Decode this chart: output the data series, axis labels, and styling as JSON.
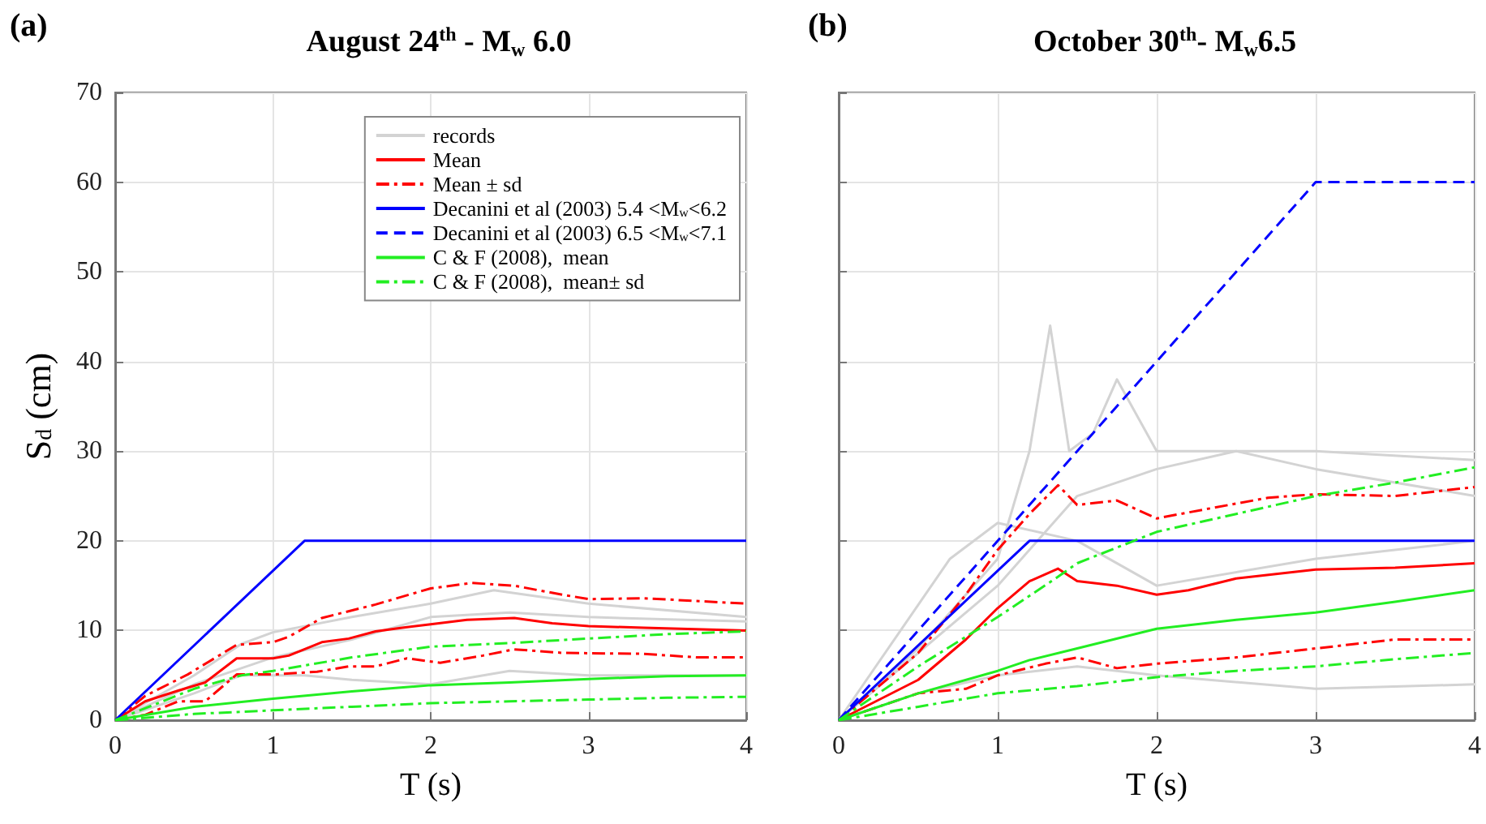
{
  "chart_data": [
    {
      "type": "line",
      "title": "August 24$^{th}$ - M$_{w}$ 6.0",
      "xlabel": "T (s)",
      "ylabel": "S$_{d}$ (cm)",
      "annotations": [
        "(a)"
      ],
      "xlim": [
        0,
        4
      ],
      "xticks": [
        0,
        1,
        2,
        3,
        4
      ],
      "ylim": [
        0,
        70
      ],
      "yticks": [
        0,
        10,
        20,
        30,
        40,
        50,
        60,
        70
      ],
      "grid": true,
      "legend": "top right",
      "marker": "none",
      "series": [
        {
          "name": "records",
          "color": "#d3d3d3",
          "line_style": "solid",
          "x": [
            0,
            0.5,
            0.8,
            1,
            1.5,
            2,
            2.4,
            3,
            4
          ],
          "values": [
            0,
            5,
            8.5,
            9.8,
            11.5,
            13,
            14.5,
            13,
            11.5
          ]
        },
        {
          "color": "#d3d3d3",
          "line_style": "solid",
          "x": [
            0,
            0.5,
            1,
            1.5,
            2,
            2.5,
            3,
            4
          ],
          "values": [
            0,
            4,
            7,
            9,
            11.5,
            12,
            11.5,
            11
          ]
        },
        {
          "color": "#d3d3d3",
          "line_style": "solid",
          "x": [
            0,
            0.5,
            0.8,
            1.2,
            1.5,
            2,
            2.5,
            3,
            4
          ],
          "values": [
            0,
            3,
            5,
            5,
            4.5,
            4,
            5.5,
            5,
            5
          ]
        },
        {
          "name": "Mean",
          "color": "#ff0000",
          "line_style": "solid",
          "x": [
            0,
            0.19,
            0.4,
            0.57,
            0.77,
            1,
            1.1,
            1.31,
            1.48,
            1.65,
            1.82,
            2,
            2.23,
            2.53,
            2.77,
            3,
            3.35,
            4
          ],
          "values": [
            0,
            2.1,
            3.3,
            4.2,
            6.9,
            6.9,
            7.2,
            8.7,
            9.1,
            9.9,
            10.3,
            10.7,
            11.2,
            11.4,
            10.8,
            10.5,
            10.3,
            10
          ]
        },
        {
          "name": "Mean ± sd",
          "color": "#ff0000",
          "line_style": "dashdot",
          "x": [
            0,
            0.19,
            0.46,
            0.77,
            1,
            1.1,
            1.31,
            1.65,
            2,
            2.26,
            2.53,
            2.8,
            3,
            3.35,
            4
          ],
          "values": [
            0,
            2.7,
            5.1,
            8.4,
            8.7,
            9.3,
            11.4,
            12.9,
            14.7,
            15.3,
            15,
            14.1,
            13.5,
            13.6,
            13
          ]
        },
        {
          "color": "#ff0000",
          "line_style": "dashdot",
          "x": [
            0,
            0.19,
            0.4,
            0.57,
            0.77,
            1,
            1.28,
            1.48,
            1.65,
            1.85,
            2.06,
            2.33,
            2.53,
            2.84,
            3.35,
            3.69,
            4
          ],
          "values": [
            0,
            0.6,
            2.1,
            2.1,
            5.1,
            5.1,
            5.4,
            6,
            6,
            6.9,
            6.4,
            7.2,
            7.9,
            7.5,
            7.4,
            7,
            7
          ]
        },
        {
          "name": "Decanini et al (2003) 5.4 <M$_{w}$<6.2",
          "color": "#0000ff",
          "line_style": "solid",
          "x": [
            0,
            1.2,
            4
          ],
          "values": [
            0,
            20,
            20
          ]
        },
        {
          "name": "Decanini et al (2003) 6.5 <M$_{w}$<7.1",
          "color": "#0000ff",
          "line_style": "dashed"
        },
        {
          "name": "C & F (2008),  mean",
          "color": "#22ee22",
          "line_style": "solid",
          "x": [
            0,
            0.5,
            1,
            1.5,
            2,
            2.5,
            3,
            3.5,
            4
          ],
          "values": [
            0,
            1.5,
            2.4,
            3.2,
            3.9,
            4.2,
            4.6,
            4.9,
            5
          ]
        },
        {
          "name": "C & F (2008),  mean± sd",
          "color": "#22ee22",
          "line_style": "dashdot",
          "x": [
            0,
            0.5,
            0.8,
            1,
            1.5,
            2,
            2.5,
            3,
            3.5,
            4
          ],
          "values": [
            0,
            3.5,
            5,
            5.5,
            7,
            8.2,
            8.6,
            9.1,
            9.6,
            9.9
          ]
        },
        {
          "color": "#22ee22",
          "line_style": "dashdot",
          "x": [
            0,
            0.5,
            1,
            1.5,
            2,
            2.5,
            3,
            3.5,
            4
          ],
          "values": [
            0,
            0.7,
            1.1,
            1.5,
            1.9,
            2.1,
            2.3,
            2.5,
            2.6
          ]
        }
      ]
    },
    {
      "type": "line",
      "title": "October 30$^{th}$- M$_{w}$6.5",
      "xlabel": "T (s)",
      "annotations": [
        "(b)"
      ],
      "xlim": [
        0,
        4
      ],
      "xticks": [
        0,
        1,
        2,
        3,
        4
      ],
      "ylim": [
        0,
        70
      ],
      "yticks": [
        0,
        10,
        20,
        30,
        40,
        50,
        60,
        70
      ],
      "grid": true,
      "tick_labels": "x",
      "marker": "none",
      "series": [
        {
          "color": "#d3d3d3",
          "line_style": "solid",
          "x": [
            0,
            0.5,
            1,
            1.2,
            1.33,
            1.45,
            1.6,
            1.75,
            2,
            2.5,
            3,
            4
          ],
          "values": [
            0,
            8,
            18,
            30,
            44,
            30,
            32,
            38,
            30,
            30,
            28,
            25
          ]
        },
        {
          "color": "#d3d3d3",
          "line_style": "solid",
          "x": [
            0,
            0.7,
            1,
            1.5,
            2,
            3,
            4
          ],
          "values": [
            0,
            18,
            22,
            20,
            15,
            18,
            20
          ]
        },
        {
          "color": "#d3d3d3",
          "line_style": "solid",
          "x": [
            0,
            0.5,
            1,
            1.5,
            2,
            3,
            4
          ],
          "values": [
            0,
            3,
            5,
            6,
            5,
            3.5,
            4
          ]
        },
        {
          "color": "#d3d3d3",
          "line_style": "solid",
          "x": [
            0,
            1,
            1.5,
            2,
            2.5,
            3,
            4
          ],
          "values": [
            0,
            15,
            25,
            28,
            30,
            30,
            29
          ]
        },
        {
          "color": "#ff0000",
          "line_style": "solid",
          "x": [
            0,
            0.5,
            0.8,
            1,
            1.2,
            1.38,
            1.5,
            1.75,
            2,
            2.2,
            2.5,
            3,
            3.5,
            4
          ],
          "values": [
            0,
            4.5,
            9,
            12.5,
            15.5,
            16.9,
            15.5,
            15,
            14,
            14.5,
            15.8,
            16.8,
            17,
            17.5
          ]
        },
        {
          "color": "#ff0000",
          "line_style": "dashdot",
          "x": [
            0,
            0.5,
            0.8,
            1,
            1.2,
            1.38,
            1.5,
            1.75,
            2,
            2.3,
            2.7,
            3,
            3.5,
            4
          ],
          "values": [
            0,
            7.5,
            14,
            19,
            23,
            26.2,
            24,
            24.5,
            22.5,
            23.5,
            24.8,
            25.2,
            25,
            26
          ]
        },
        {
          "color": "#ff0000",
          "line_style": "dashdot",
          "x": [
            0,
            0.5,
            0.8,
            1,
            1.3,
            1.5,
            1.75,
            2,
            2.5,
            3,
            3.5,
            4
          ],
          "values": [
            0,
            3,
            3.5,
            5,
            6.3,
            7,
            5.8,
            6.3,
            7,
            8,
            9,
            9
          ]
        },
        {
          "color": "#0000ff",
          "line_style": "solid",
          "x": [
            0,
            1.2,
            4
          ],
          "values": [
            0,
            20,
            20
          ]
        },
        {
          "color": "#0000ff",
          "line_style": "dashed",
          "x": [
            0,
            3,
            4
          ],
          "values": [
            0,
            60,
            60
          ]
        },
        {
          "color": "#22ee22",
          "line_style": "solid",
          "x": [
            0,
            0.5,
            1,
            1.2,
            1.5,
            2,
            2.5,
            3,
            3.5,
            4
          ],
          "values": [
            0,
            3,
            5.5,
            6.7,
            8,
            10.2,
            11.2,
            12,
            13.2,
            14.5
          ]
        },
        {
          "color": "#22ee22",
          "line_style": "dashdot",
          "x": [
            0,
            0.5,
            1,
            1.38,
            1.5,
            2,
            2.5,
            3,
            3.5,
            4
          ],
          "values": [
            0,
            6,
            11.5,
            16,
            17.5,
            21,
            23,
            25,
            26.5,
            28.2
          ]
        },
        {
          "color": "#22ee22",
          "line_style": "dashdot",
          "x": [
            0,
            0.5,
            1,
            1.5,
            2,
            2.5,
            3,
            3.5,
            4
          ],
          "values": [
            0,
            1.5,
            3,
            3.8,
            4.8,
            5.5,
            6,
            6.8,
            7.5
          ]
        }
      ]
    }
  ]
}
